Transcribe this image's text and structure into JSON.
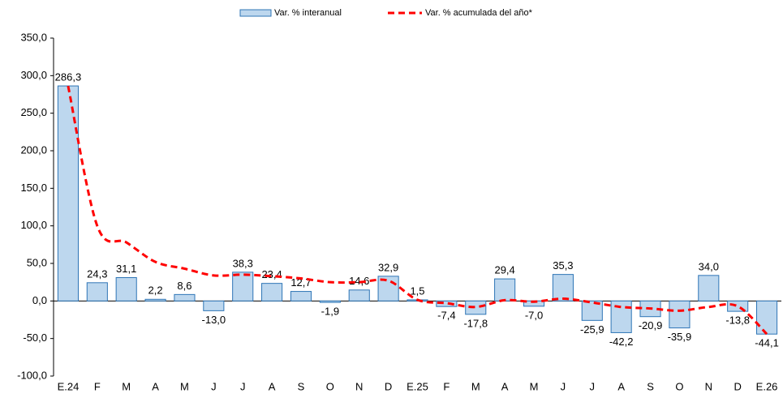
{
  "chart_data": {
    "type": "bar_line",
    "categories": [
      "E.24",
      "F",
      "M",
      "A",
      "M",
      "J",
      "J",
      "A",
      "S",
      "O",
      "N",
      "D",
      "E.25",
      "F",
      "M",
      "A",
      "M",
      "J",
      "J",
      "A",
      "S",
      "O",
      "N",
      "D",
      "E.26"
    ],
    "series": [
      {
        "name": "Var. % interanual",
        "type": "bar",
        "color": "#bdd7ee",
        "edge_color": "#2e75b6",
        "values": [
          286.3,
          24.3,
          31.1,
          2.2,
          8.6,
          -13.0,
          38.3,
          23.4,
          12.7,
          -1.9,
          14.6,
          32.9,
          1.5,
          -7.4,
          -17.8,
          29.4,
          -7.0,
          35.3,
          -25.9,
          -42.2,
          -20.9,
          -35.9,
          34.0,
          -13.8,
          -44.1
        ],
        "value_labels": [
          "286,3",
          "24,3",
          "31,1",
          "2,2",
          "8,6",
          "-13,0",
          "38,3",
          "23,4",
          "12,7",
          "-1,9",
          "14,6",
          "32,9",
          "1,5",
          "-7,4",
          "-17,8",
          "29,4",
          "-7,0",
          "35,3",
          "-25,9",
          "-42,2",
          "-20,9",
          "-35,9",
          "34,0",
          "-13,8",
          "-44,1"
        ]
      },
      {
        "name": "Var. % acumulada del año*",
        "type": "line",
        "color": "#ff0000",
        "dashed": true,
        "values": [
          286.3,
          100,
          78,
          52,
          43,
          34,
          35,
          33,
          30,
          25,
          25,
          27,
          1.5,
          -3,
          -8,
          1,
          -1,
          3,
          -2,
          -8,
          -10,
          -13,
          -8,
          -7,
          -44.1
        ]
      }
    ],
    "ylim": [
      -100,
      350
    ],
    "yticks": [
      {
        "value": -100,
        "label": "-100,0"
      },
      {
        "value": -50,
        "label": "-50,0"
      },
      {
        "value": 0,
        "label": "0,0"
      },
      {
        "value": 50,
        "label": "50,0"
      },
      {
        "value": 100,
        "label": "100,0"
      },
      {
        "value": 150,
        "label": "150,0"
      },
      {
        "value": 200,
        "label": "200,0"
      },
      {
        "value": 250,
        "label": "250,0"
      },
      {
        "value": 300,
        "label": "300,0"
      },
      {
        "value": 350,
        "label": "350,0"
      }
    ],
    "grid": false,
    "legend": "top"
  }
}
